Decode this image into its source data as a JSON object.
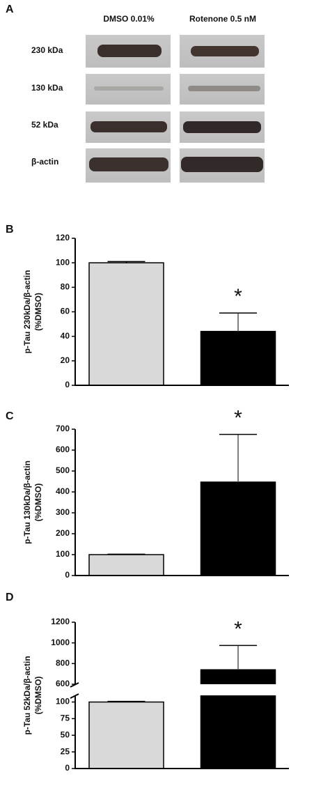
{
  "panel_a": {
    "label": "A",
    "columns": [
      "DMSO 0.01%",
      "Rotenone 0.5 nM"
    ],
    "rows": [
      "230 kDa",
      "130 kDa",
      "52 kDa",
      "β-actin"
    ]
  },
  "chart_data": [
    {
      "type": "bar",
      "panel_label": "B",
      "y_label": [
        "p-Tau 230kDa/β-actin",
        "(%DMSO)"
      ],
      "values": [
        100,
        44
      ],
      "errors": [
        1,
        15
      ],
      "colors": [
        "#d9d9d9",
        "#000000"
      ],
      "annotation": "*",
      "ylim": [
        0,
        120
      ],
      "yticks": [
        0,
        20,
        40,
        60,
        80,
        100,
        120
      ]
    },
    {
      "type": "bar",
      "panel_label": "C",
      "y_label": [
        "p-Tau 130kDa/β-actin",
        "(%DMSO)"
      ],
      "values": [
        100,
        447
      ],
      "errors": [
        2,
        228
      ],
      "colors": [
        "#d9d9d9",
        "#000000"
      ],
      "annotation": "*",
      "ylim": [
        0,
        700
      ],
      "yticks": [
        0,
        100,
        200,
        300,
        400,
        500,
        600,
        700
      ]
    },
    {
      "type": "bar",
      "panel_label": "D",
      "y_label": [
        "p-Tau 52kDa/β-actin",
        "(%DMSO)"
      ],
      "values": [
        100,
        740
      ],
      "errors": [
        1,
        235
      ],
      "colors": [
        "#d9d9d9",
        "#000000"
      ],
      "annotation": "*",
      "segments": [
        {
          "ylim": [
            0,
            110
          ],
          "yticks": [
            0,
            25,
            50,
            75,
            100
          ]
        },
        {
          "ylim": [
            600,
            1200
          ],
          "yticks": [
            600,
            800,
            1000,
            1200
          ]
        }
      ]
    }
  ]
}
